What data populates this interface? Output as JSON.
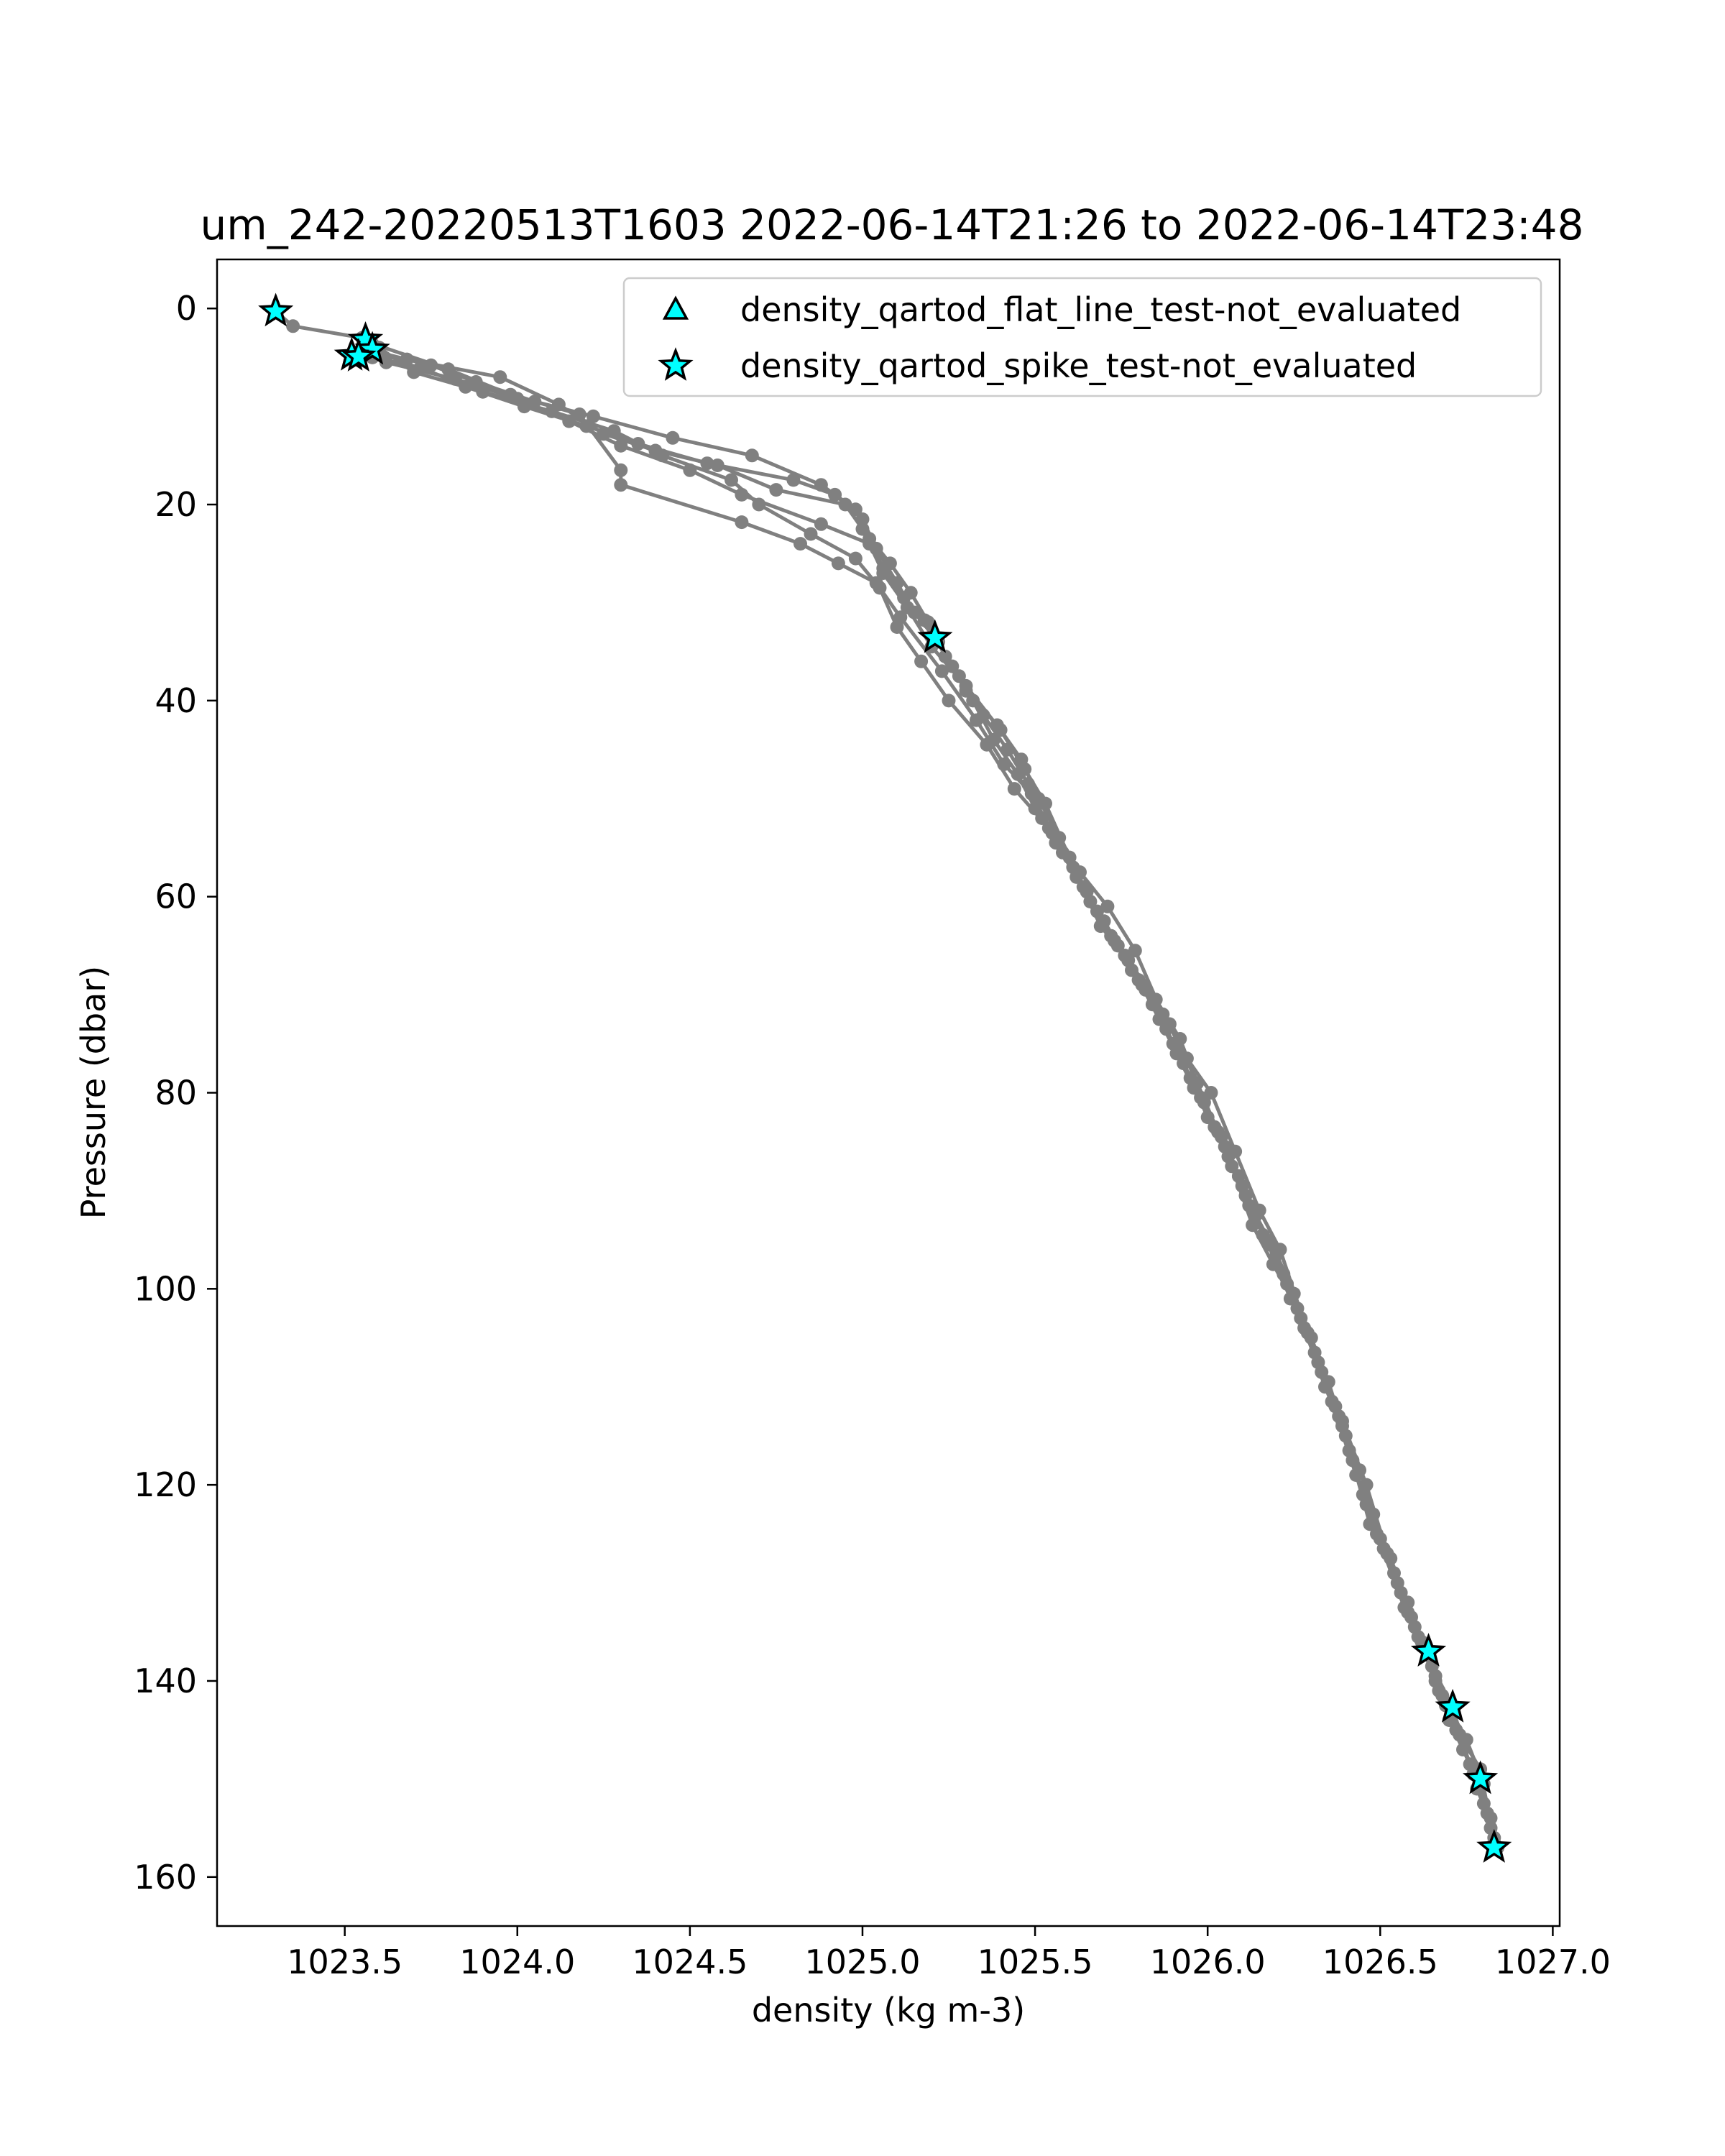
{
  "chart_data": {
    "type": "line",
    "title": "um_242-20220513T1603 2022-06-14T21:26 to 2022-06-14T23:48",
    "xlabel": "density (kg m-3)",
    "ylabel": "Pressure (dbar)",
    "xlim": [
      1023.13,
      1027.02
    ],
    "ylim": [
      165,
      -5
    ],
    "y_inverted": true,
    "grid": false,
    "legend_placement": "top-right",
    "xticks": [
      1023.5,
      1024.0,
      1024.5,
      1025.0,
      1025.5,
      1026.0,
      1026.5,
      1027.0
    ],
    "xtick_labels": [
      "1023.5",
      "1024.0",
      "1024.5",
      "1025.0",
      "1025.5",
      "1026.0",
      "1026.5",
      "1027.0"
    ],
    "yticks": [
      0,
      20,
      40,
      60,
      80,
      100,
      120,
      140,
      160
    ],
    "ytick_labels": [
      "0",
      "20",
      "40",
      "60",
      "80",
      "100",
      "120",
      "140",
      "160"
    ],
    "line_color": "#808080",
    "marker_face_color": "#00ffff",
    "marker_edge_color": "#000000",
    "series": [
      {
        "points": [
          [
            1023.3,
            0.3
          ],
          [
            1023.35,
            1.8
          ],
          [
            1023.55,
            3.0
          ],
          [
            1023.6,
            4.5
          ],
          [
            1023.75,
            5.8
          ],
          [
            1023.88,
            7.5
          ],
          [
            1024.05,
            9.5
          ],
          [
            1024.22,
            11.0
          ],
          [
            1024.45,
            13.2
          ],
          [
            1024.68,
            15.0
          ],
          [
            1024.88,
            18.0
          ],
          [
            1024.98,
            20.5
          ],
          [
            1025.02,
            23.5
          ],
          [
            1025.06,
            26.5
          ],
          [
            1025.12,
            29.5
          ],
          [
            1025.18,
            31.8
          ],
          [
            1025.22,
            34.0
          ],
          [
            1025.28,
            37.5
          ],
          [
            1025.35,
            41.5
          ],
          [
            1025.42,
            45.0
          ],
          [
            1025.48,
            48.5
          ],
          [
            1025.52,
            52.0
          ],
          [
            1025.58,
            55.5
          ],
          [
            1025.64,
            59.0
          ],
          [
            1025.7,
            62.5
          ],
          [
            1025.76,
            66.0
          ],
          [
            1025.82,
            69.5
          ],
          [
            1025.88,
            73.5
          ],
          [
            1025.93,
            77.0
          ],
          [
            1025.98,
            80.5
          ],
          [
            1026.04,
            84.5
          ],
          [
            1026.09,
            88.5
          ],
          [
            1026.14,
            92.5
          ],
          [
            1026.2,
            96.5
          ],
          [
            1026.25,
            100.5
          ],
          [
            1026.3,
            105.0
          ],
          [
            1026.35,
            109.5
          ],
          [
            1026.39,
            114.0
          ],
          [
            1026.44,
            118.5
          ],
          [
            1026.48,
            123.0
          ],
          [
            1026.53,
            127.5
          ],
          [
            1026.58,
            132.0
          ],
          [
            1026.63,
            136.5
          ],
          [
            1026.67,
            141.0
          ],
          [
            1026.72,
            145.0
          ],
          [
            1026.77,
            149.5
          ],
          [
            1026.82,
            154.0
          ],
          [
            1026.84,
            157.0
          ]
        ]
      },
      {
        "points": [
          [
            1023.52,
            4.8
          ],
          [
            1023.58,
            5.0
          ],
          [
            1023.72,
            6.0
          ],
          [
            1023.85,
            8.0
          ],
          [
            1024.02,
            10.0
          ],
          [
            1024.2,
            12.0
          ],
          [
            1024.35,
            13.8
          ],
          [
            1024.55,
            15.8
          ],
          [
            1024.8,
            17.5
          ],
          [
            1024.92,
            19.0
          ],
          [
            1025.0,
            21.5
          ],
          [
            1025.04,
            24.5
          ],
          [
            1025.1,
            28.0
          ],
          [
            1025.15,
            31.0
          ],
          [
            1025.21,
            33.6
          ],
          [
            1025.26,
            36.5
          ],
          [
            1025.32,
            40.0
          ],
          [
            1025.38,
            44.0
          ],
          [
            1025.45,
            47.5
          ],
          [
            1025.5,
            51.0
          ],
          [
            1025.56,
            54.5
          ],
          [
            1025.62,
            58.0
          ],
          [
            1025.68,
            61.5
          ],
          [
            1025.74,
            65.0
          ],
          [
            1025.8,
            68.5
          ],
          [
            1025.86,
            72.5
          ],
          [
            1025.91,
            76.0
          ],
          [
            1025.96,
            79.5
          ],
          [
            1026.02,
            83.5
          ],
          [
            1026.07,
            87.5
          ],
          [
            1026.12,
            91.5
          ],
          [
            1026.18,
            95.5
          ],
          [
            1026.23,
            99.5
          ],
          [
            1026.28,
            104.0
          ],
          [
            1026.33,
            108.5
          ],
          [
            1026.38,
            113.0
          ],
          [
            1026.42,
            117.5
          ],
          [
            1026.46,
            122.0
          ],
          [
            1026.51,
            126.5
          ],
          [
            1026.56,
            131.0
          ],
          [
            1026.61,
            135.5
          ],
          [
            1026.66,
            140.0
          ],
          [
            1026.7,
            144.0
          ],
          [
            1026.76,
            148.5
          ],
          [
            1026.8,
            152.5
          ],
          [
            1026.83,
            156.0
          ]
        ]
      },
      {
        "points": [
          [
            1023.56,
            3.2
          ],
          [
            1023.62,
            5.5
          ],
          [
            1023.82,
            7.2
          ],
          [
            1024.0,
            9.2
          ],
          [
            1024.15,
            11.5
          ],
          [
            1024.3,
            14.0
          ],
          [
            1024.5,
            16.5
          ],
          [
            1024.65,
            19.0
          ],
          [
            1024.88,
            22.0
          ],
          [
            1025.02,
            24.0
          ],
          [
            1025.06,
            27.0
          ],
          [
            1025.13,
            30.5
          ],
          [
            1025.2,
            34.5
          ],
          [
            1025.3,
            38.5
          ],
          [
            1025.4,
            43.0
          ],
          [
            1025.47,
            47.0
          ],
          [
            1025.53,
            50.5
          ],
          [
            1025.6,
            56.0
          ],
          [
            1025.66,
            60.5
          ],
          [
            1025.72,
            64.0
          ],
          [
            1025.78,
            67.5
          ],
          [
            1025.84,
            71.0
          ],
          [
            1025.9,
            75.0
          ],
          [
            1025.95,
            78.5
          ],
          [
            1026.0,
            82.5
          ],
          [
            1026.06,
            86.5
          ],
          [
            1026.11,
            90.5
          ],
          [
            1026.16,
            94.5
          ],
          [
            1026.22,
            98.5
          ],
          [
            1026.27,
            103.0
          ],
          [
            1026.32,
            107.5
          ],
          [
            1026.37,
            112.0
          ],
          [
            1026.41,
            116.5
          ],
          [
            1026.45,
            121.0
          ],
          [
            1026.5,
            125.5
          ],
          [
            1026.55,
            130.0
          ],
          [
            1026.6,
            134.5
          ],
          [
            1026.64,
            137.0
          ],
          [
            1026.69,
            142.5
          ],
          [
            1026.74,
            147.0
          ],
          [
            1026.79,
            150.0
          ],
          [
            1026.82,
            155.0
          ]
        ]
      },
      {
        "points": [
          [
            1023.6,
            4.0
          ],
          [
            1023.7,
            6.5
          ],
          [
            1023.9,
            8.5
          ],
          [
            1024.1,
            10.5
          ],
          [
            1024.28,
            12.5
          ],
          [
            1024.42,
            15.0
          ],
          [
            1024.62,
            17.5
          ],
          [
            1024.7,
            20.0
          ],
          [
            1024.85,
            23.0
          ],
          [
            1024.98,
            25.5
          ],
          [
            1025.05,
            28.5
          ],
          [
            1025.1,
            32.5
          ],
          [
            1025.17,
            36.0
          ],
          [
            1025.25,
            40.0
          ],
          [
            1025.36,
            44.5
          ],
          [
            1025.44,
            49.0
          ],
          [
            1025.54,
            53.0
          ],
          [
            1025.61,
            57.0
          ],
          [
            1025.69,
            63.0
          ],
          [
            1025.77,
            66.5
          ],
          [
            1025.85,
            70.5
          ],
          [
            1025.92,
            74.5
          ],
          [
            1025.99,
            81.0
          ],
          [
            1026.05,
            85.5
          ],
          [
            1026.13,
            93.5
          ],
          [
            1026.19,
            97.5
          ],
          [
            1026.26,
            102.0
          ],
          [
            1026.34,
            110.0
          ],
          [
            1026.4,
            115.0
          ],
          [
            1026.47,
            124.0
          ],
          [
            1026.54,
            129.0
          ],
          [
            1026.59,
            133.5
          ],
          [
            1026.65,
            138.5
          ],
          [
            1026.71,
            142.7
          ],
          [
            1026.78,
            151.0
          ],
          [
            1026.81,
            153.5
          ]
        ]
      },
      {
        "points": [
          [
            1023.54,
            4.6
          ],
          [
            1023.68,
            5.2
          ],
          [
            1023.95,
            7.0
          ],
          [
            1024.12,
            9.8
          ],
          [
            1024.25,
            12.8
          ],
          [
            1024.4,
            14.5
          ],
          [
            1024.58,
            16.0
          ],
          [
            1024.75,
            18.5
          ],
          [
            1024.95,
            20.0
          ],
          [
            1025.0,
            22.5
          ],
          [
            1025.08,
            26.0
          ],
          [
            1025.14,
            29.0
          ],
          [
            1025.19,
            32.0
          ],
          [
            1025.24,
            35.5
          ],
          [
            1025.3,
            39.0
          ],
          [
            1025.39,
            42.5
          ],
          [
            1025.46,
            46.0
          ],
          [
            1025.51,
            50.0
          ],
          [
            1025.57,
            54.0
          ],
          [
            1025.63,
            57.5
          ],
          [
            1025.71,
            61.0
          ],
          [
            1025.79,
            65.5
          ],
          [
            1025.87,
            72.0
          ],
          [
            1025.94,
            76.5
          ],
          [
            1026.01,
            80.0
          ],
          [
            1026.08,
            86.0
          ],
          [
            1026.15,
            92.0
          ],
          [
            1026.21,
            96.0
          ],
          [
            1026.29,
            104.5
          ],
          [
            1026.36,
            111.5
          ],
          [
            1026.43,
            119.0
          ],
          [
            1026.49,
            125.0
          ],
          [
            1026.57,
            132.5
          ],
          [
            1026.62,
            136.0
          ],
          [
            1026.68,
            141.5
          ],
          [
            1026.75,
            146.0
          ],
          [
            1026.8,
            150.5
          ]
        ]
      },
      {
        "points": [
          [
            1023.58,
            3.6
          ],
          [
            1023.8,
            6.2
          ],
          [
            1023.98,
            8.8
          ],
          [
            1024.18,
            10.8
          ],
          [
            1024.3,
            16.5
          ],
          [
            1024.3,
            18.0
          ],
          [
            1024.65,
            21.8
          ],
          [
            1024.82,
            24.0
          ],
          [
            1024.93,
            26.0
          ],
          [
            1025.04,
            28.0
          ],
          [
            1025.11,
            31.5
          ],
          [
            1025.23,
            37.0
          ],
          [
            1025.33,
            42.0
          ],
          [
            1025.41,
            46.5
          ],
          [
            1025.49,
            49.5
          ],
          [
            1025.55,
            53.5
          ],
          [
            1025.65,
            59.5
          ],
          [
            1025.73,
            64.5
          ],
          [
            1025.81,
            69.0
          ],
          [
            1025.89,
            73.0
          ],
          [
            1025.97,
            79.0
          ],
          [
            1026.03,
            84.0
          ],
          [
            1026.1,
            89.5
          ],
          [
            1026.17,
            95.0
          ],
          [
            1026.24,
            101.0
          ],
          [
            1026.31,
            106.5
          ],
          [
            1026.39,
            113.5
          ],
          [
            1026.46,
            120.0
          ],
          [
            1026.52,
            127.0
          ],
          [
            1026.58,
            133.0
          ],
          [
            1026.66,
            139.5
          ],
          [
            1026.73,
            145.5
          ],
          [
            1026.79,
            149.0
          ],
          [
            1026.83,
            156.5
          ]
        ]
      }
    ],
    "flagged_points": [
      {
        "legend_index": 1,
        "points": [
          [
            1023.3,
            0.3
          ],
          [
            1023.56,
            3.2
          ],
          [
            1023.58,
            4.2
          ],
          [
            1023.52,
            4.8
          ],
          [
            1023.54,
            4.9
          ],
          [
            1025.21,
            33.6
          ],
          [
            1026.64,
            137.0
          ],
          [
            1026.71,
            142.7
          ],
          [
            1026.79,
            150.0
          ],
          [
            1026.83,
            157.0
          ]
        ]
      }
    ],
    "legend": [
      {
        "label": "density_qartod_flat_line_test-not_evaluated",
        "marker": "triangle",
        "color": "#00ffff"
      },
      {
        "label": "density_qartod_spike_test-not_evaluated",
        "marker": "star",
        "color": "#00ffff"
      }
    ]
  }
}
